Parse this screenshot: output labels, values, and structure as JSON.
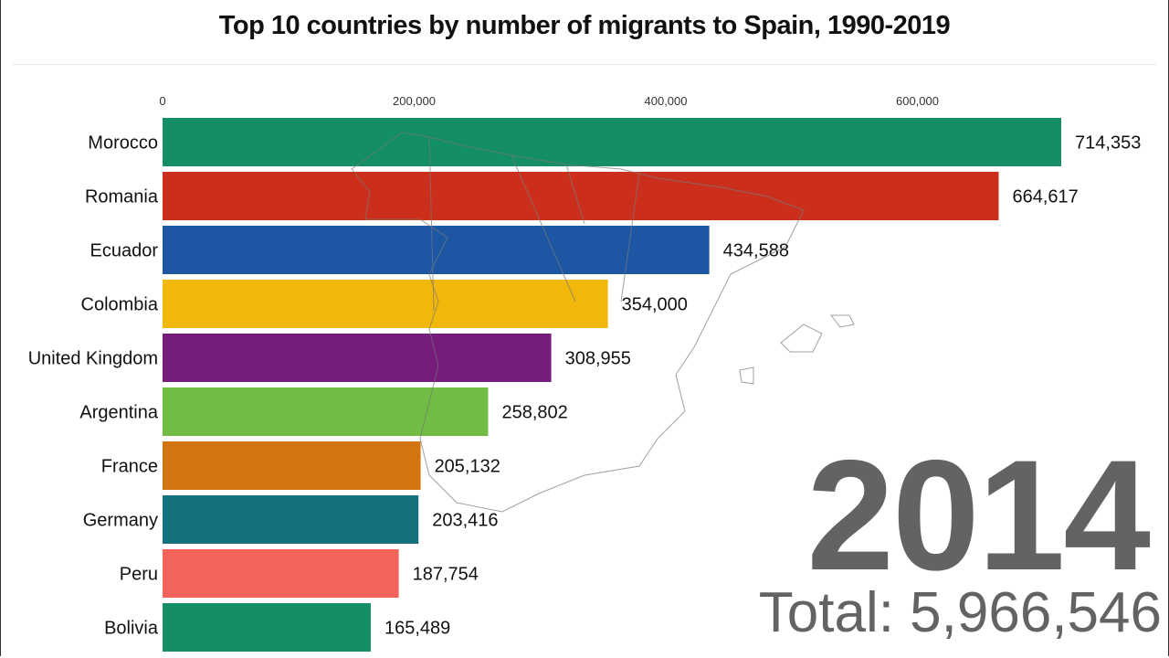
{
  "chart_data": {
    "type": "bar",
    "orientation": "horizontal",
    "title": "Top 10 countries by number of migrants to Spain, 1990-2019",
    "categories": [
      "Morocco",
      "Romania",
      "Ecuador",
      "Colombia",
      "United Kingdom",
      "Argentina",
      "France",
      "Germany",
      "Peru",
      "Bolivia"
    ],
    "values": [
      714353,
      664617,
      434588,
      354000,
      308955,
      258802,
      205132,
      203416,
      187754,
      165489
    ],
    "value_labels": [
      "714,353",
      "664,617",
      "434,588",
      "354,000",
      "308,955",
      "258,802",
      "205,132",
      "203,416",
      "187,754",
      "165,489"
    ],
    "colors": [
      "#0a8a5e",
      "#c92712",
      "#1450a0",
      "#f0b400",
      "#701477",
      "#6ab93c",
      "#d06e05",
      "#0b6b78",
      "#f25c54",
      "#0a8a5e"
    ],
    "xticks": [
      0,
      200000,
      400000,
      600000
    ],
    "xtick_labels": [
      "0",
      "200,000",
      "400,000",
      "600,000"
    ],
    "xlim": [
      0,
      600000
    ],
    "axis_position": "top",
    "grid": false,
    "background": "outline map of Spain"
  },
  "year": "2014",
  "total": "Total: 5,966,546"
}
